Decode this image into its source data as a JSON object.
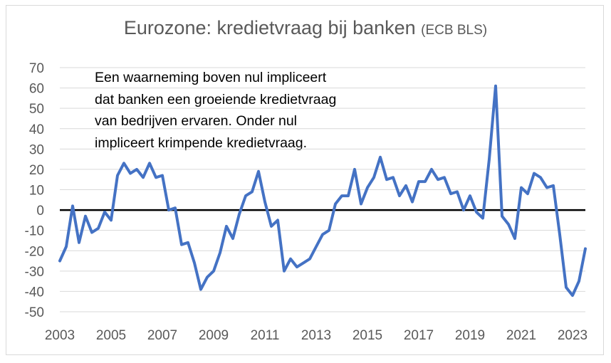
{
  "chart_data": {
    "type": "line",
    "title": "Eurozone: kredietvraag bij banken",
    "subtitle": "(ECB BLS)",
    "annotation": [
      "Een waarneming boven nul impliceert",
      "dat banken een groeiende kredietvraag",
      "van bedrijven ervaren. Onder nul",
      "impliceert krimpende kredietvraag."
    ],
    "xlabel": "",
    "ylabel": "",
    "xlim": [
      2003,
      2023.5
    ],
    "ylim": [
      -50,
      70
    ],
    "yticks": [
      70,
      60,
      50,
      40,
      30,
      20,
      10,
      0,
      -10,
      -20,
      -30,
      -40,
      -50
    ],
    "xticks": [
      2003,
      2005,
      2007,
      2009,
      2011,
      2013,
      2015,
      2017,
      2019,
      2021,
      2023
    ],
    "grid": true,
    "legend": "none",
    "line_color": "#4472c4",
    "zero_line_color": "#000000",
    "series": [
      {
        "x": [
          2003.0,
          2003.25,
          2003.5,
          2003.75,
          2004.0,
          2004.25,
          2004.5,
          2004.75,
          2005.0,
          2005.25,
          2005.5,
          2005.75,
          2006.0,
          2006.25,
          2006.5,
          2006.75,
          2007.0,
          2007.25,
          2007.5,
          2007.75,
          2008.0,
          2008.25,
          2008.5,
          2008.75,
          2009.0,
          2009.25,
          2009.5,
          2009.75,
          2010.0,
          2010.25,
          2010.5,
          2010.75,
          2011.0,
          2011.25,
          2011.5,
          2011.75,
          2012.0,
          2012.25,
          2012.5,
          2012.75,
          2013.0,
          2013.25,
          2013.5,
          2013.75,
          2014.0,
          2014.25,
          2014.5,
          2014.75,
          2015.0,
          2015.25,
          2015.5,
          2015.75,
          2016.0,
          2016.25,
          2016.5,
          2016.75,
          2017.0,
          2017.25,
          2017.5,
          2017.75,
          2018.0,
          2018.25,
          2018.5,
          2018.75,
          2019.0,
          2019.25,
          2019.5,
          2019.75,
          2020.0,
          2020.25,
          2020.5,
          2020.75,
          2021.0,
          2021.25,
          2021.5,
          2021.75,
          2022.0,
          2022.25,
          2022.5,
          2022.75,
          2023.0,
          2023.25,
          2023.5
        ],
        "values": [
          -25,
          -18,
          2,
          -16,
          -3,
          -11,
          -9,
          -1,
          -5,
          17,
          23,
          18,
          20,
          16,
          23,
          16,
          17,
          0,
          1,
          -17,
          -16,
          -26,
          -39,
          -33,
          -30,
          -21,
          -8,
          -14,
          -2,
          7,
          9,
          19,
          4,
          -8,
          -5,
          -30,
          -24,
          -28,
          -26,
          -24,
          -18,
          -12,
          -10,
          3,
          7,
          7,
          20,
          3,
          11,
          16,
          26,
          15,
          16,
          7,
          12,
          4,
          14,
          14,
          20,
          15,
          16,
          8,
          9,
          0,
          7,
          -1,
          -4,
          25,
          61,
          -3,
          -7,
          -14,
          11,
          8,
          18,
          16,
          11,
          12,
          -12,
          -38,
          -42,
          -35,
          -19
        ]
      }
    ]
  }
}
